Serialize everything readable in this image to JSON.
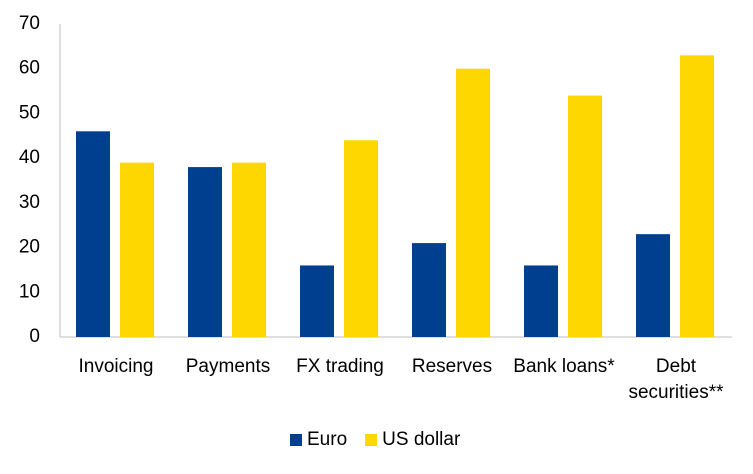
{
  "chart_data": {
    "type": "bar",
    "categories": [
      "Invoicing",
      "Payments",
      "FX trading",
      "Reserves",
      "Bank loans*",
      "Debt securities**"
    ],
    "series": [
      {
        "name": "Euro",
        "color": "#003f8f",
        "values": [
          46,
          38,
          16,
          21,
          16,
          23
        ]
      },
      {
        "name": "US dollar",
        "color": "#ffd700",
        "values": [
          39,
          39,
          44,
          60,
          54,
          63
        ]
      }
    ],
    "ylim": [
      0,
      70
    ],
    "yticks": [
      0,
      10,
      20,
      30,
      40,
      50,
      60,
      70
    ],
    "grid": false,
    "legend": "bottom"
  }
}
